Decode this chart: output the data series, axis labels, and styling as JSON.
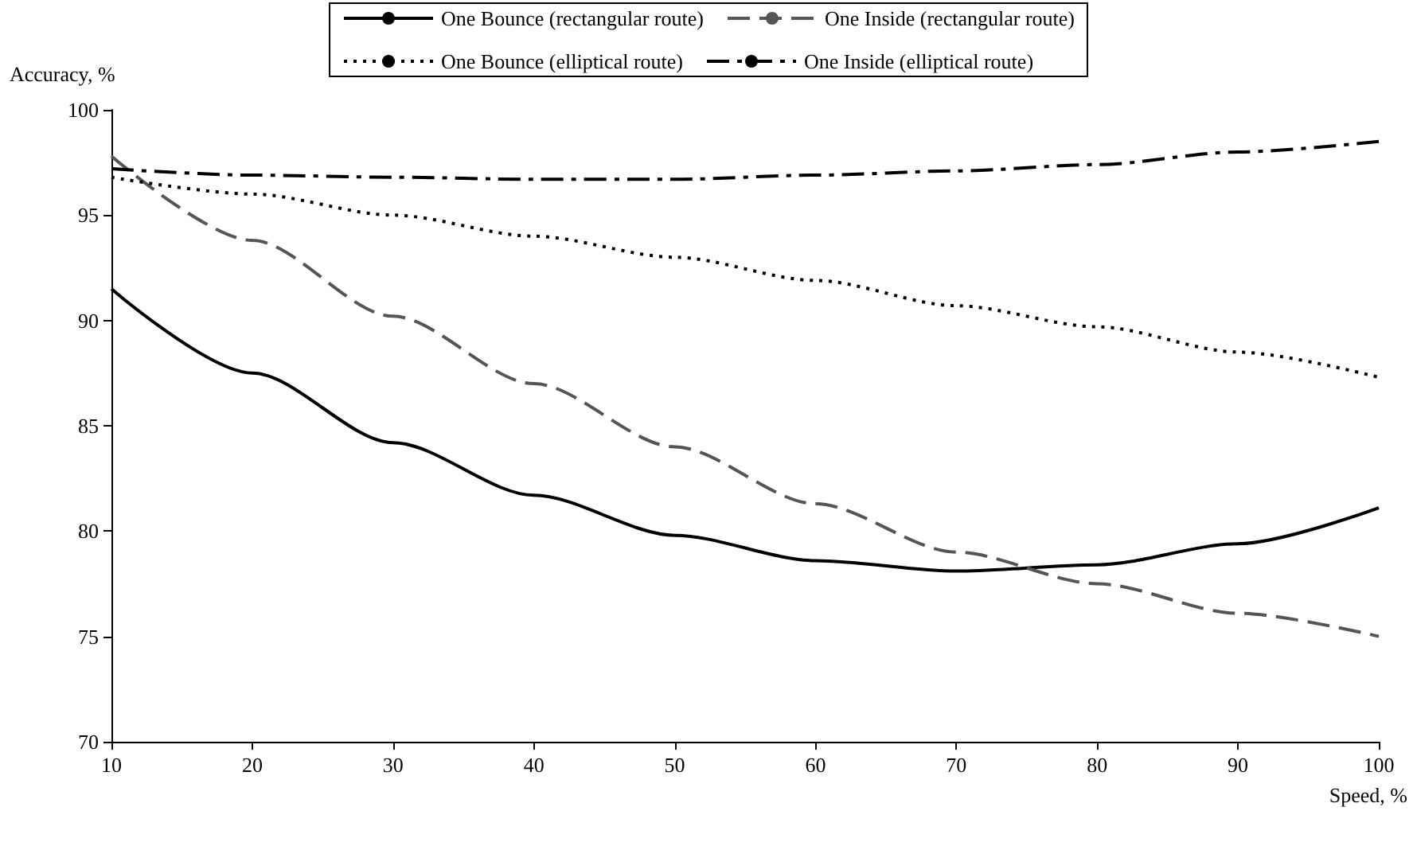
{
  "chart_data": {
    "type": "line",
    "xlabel": "Speed, %",
    "ylabel": "Accuracy, %",
    "x": [
      10,
      20,
      30,
      40,
      50,
      60,
      70,
      80,
      90,
      100
    ],
    "xlim": [
      10,
      100
    ],
    "xticks": [
      10,
      20,
      30,
      40,
      50,
      60,
      70,
      80,
      90,
      100
    ],
    "ylim": [
      70,
      100
    ],
    "yticks": [
      70,
      75,
      80,
      85,
      90,
      95,
      100
    ],
    "grid": false,
    "legend": "top",
    "marker": "none",
    "series": [
      {
        "name": "One Bounce (rectangular route)",
        "color": "#000000",
        "line_style": "solid",
        "values": [
          91.5,
          87.5,
          84.2,
          81.7,
          79.8,
          78.6,
          78.1,
          78.4,
          79.4,
          81.1
        ]
      },
      {
        "name": "One Inside (rectangular route)",
        "color": "#555555",
        "line_style": "dashed",
        "values": [
          97.8,
          93.8,
          90.2,
          87,
          84,
          81.3,
          79,
          77.5,
          76.1,
          75
        ]
      },
      {
        "name": "One Bounce (elliptical route)",
        "color": "#000000",
        "line_style": "dotted",
        "values": [
          96.8,
          96,
          95,
          94,
          93,
          91.9,
          90.7,
          89.7,
          88.5,
          87.3
        ]
      },
      {
        "name": "One Inside (elliptical route)",
        "color": "#000000",
        "line_style": "dashdot",
        "values": [
          97.2,
          96.9,
          96.8,
          96.7,
          96.7,
          96.9,
          97.1,
          97.4,
          98,
          98.5
        ]
      }
    ]
  }
}
